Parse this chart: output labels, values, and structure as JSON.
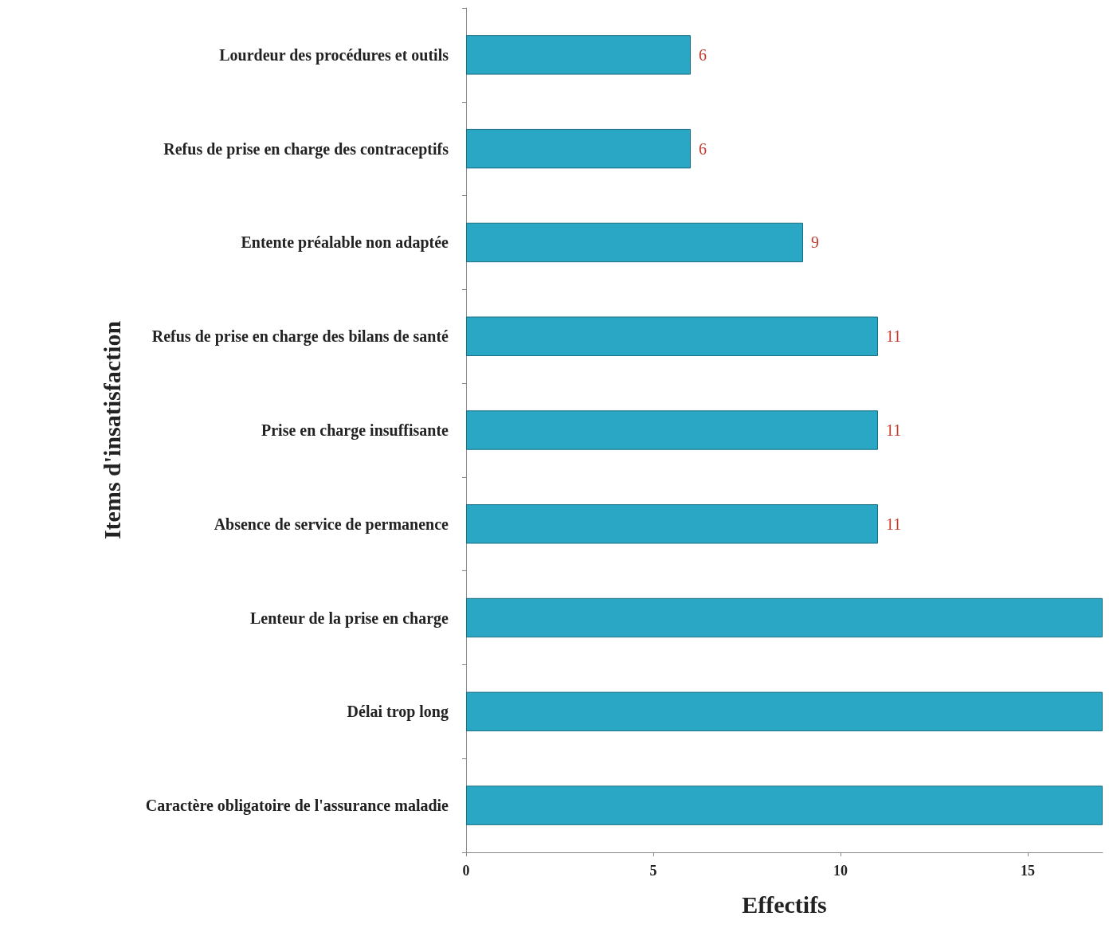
{
  "chart_data": {
    "type": "bar",
    "orientation": "horizontal",
    "xlabel": "Effectifs",
    "ylabel": "Items d'insatisfaction",
    "categories": [
      "Lourdeur des procédures et outils",
      "Refus de prise en charge des contraceptifs",
      "Entente préalable non adaptée",
      "Refus de prise en charge des bilans de santé",
      "Prise en charge insuffisante",
      "Absence de service de permanence",
      "Lenteur de la prise en charge",
      "Délai trop long",
      "Caractère obligatoire de l'assurance maladie"
    ],
    "values": [
      6,
      6,
      9,
      11,
      11,
      11,
      17,
      17,
      17
    ],
    "value_labels": [
      "6",
      "6",
      "9",
      "11",
      "11",
      "11",
      null,
      null,
      null
    ],
    "color": "#2aa7c4",
    "xlim": [
      0,
      17
    ],
    "xticks": [
      0,
      5,
      10,
      15
    ],
    "grid": false
  }
}
